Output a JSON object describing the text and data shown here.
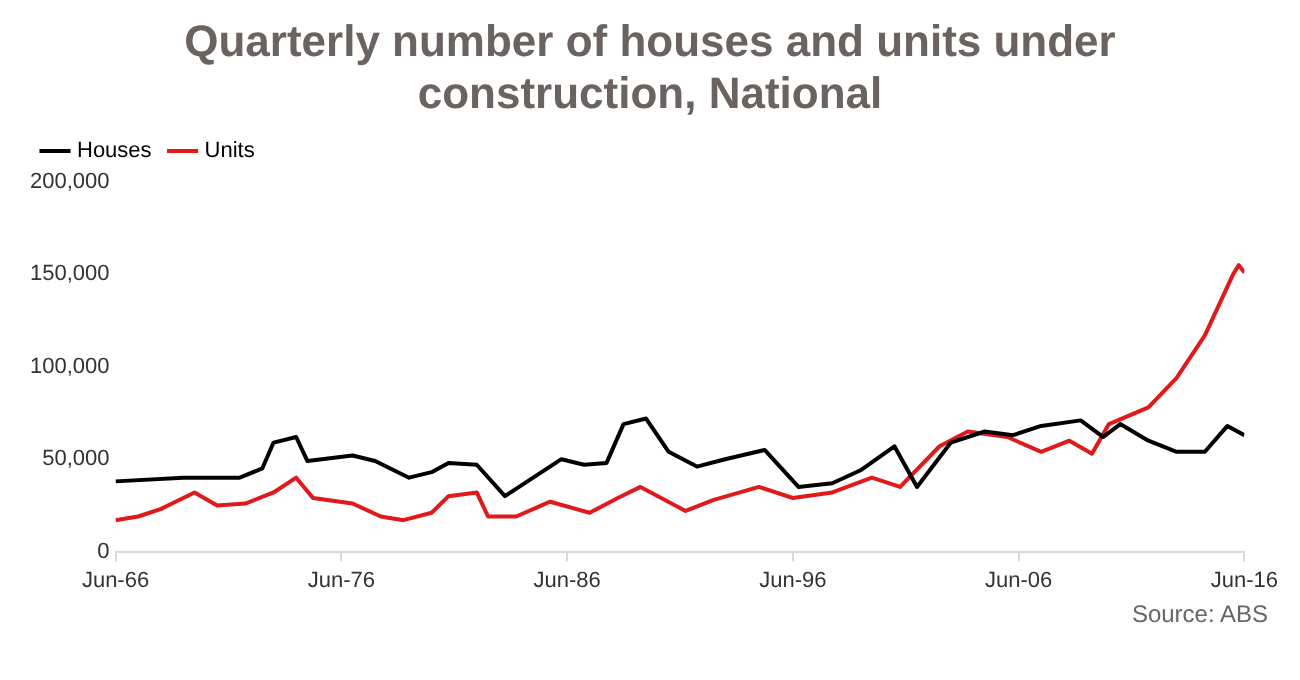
{
  "chart_data": {
    "type": "line",
    "title": "Quarterly number of houses and units under construction, National",
    "annotations": [
      "Source: ABS"
    ],
    "xlim": [
      "1966-06",
      "2016-06"
    ],
    "xticks": [
      {
        "value": "1966-06",
        "label": "Jun-66"
      },
      {
        "value": "1976-06",
        "label": "Jun-76"
      },
      {
        "value": "1986-06",
        "label": "Jun-86"
      },
      {
        "value": "1996-06",
        "label": "Jun-96"
      },
      {
        "value": "2006-06",
        "label": "Jun-06"
      },
      {
        "value": "2016-06",
        "label": "Jun-16"
      }
    ],
    "ylim": [
      0,
      200000
    ],
    "yticks": [
      {
        "value": 0,
        "label": "0"
      },
      {
        "value": 50000,
        "label": "50,000"
      },
      {
        "value": 100000,
        "label": "100,000"
      },
      {
        "value": 150000,
        "label": "150,000"
      },
      {
        "value": 200000,
        "label": "200,000"
      }
    ],
    "grid": false,
    "legend": "top left",
    "marker": "none",
    "line_style": "solid",
    "series": [
      {
        "name": "Houses",
        "color": "#000000",
        "x": [
          "1966-06",
          "1969-06",
          "1971-12",
          "1972-12",
          "1973-06",
          "1974-06",
          "1974-12",
          "1976-12",
          "1977-12",
          "1979-06",
          "1980-06",
          "1981-03",
          "1982-06",
          "1983-09",
          "1984-12",
          "1986-03",
          "1987-03",
          "1988-03",
          "1988-12",
          "1989-12",
          "1990-12",
          "1992-03",
          "1993-06",
          "1995-03",
          "1996-09",
          "1998-03",
          "1999-06",
          "2000-12",
          "2001-12",
          "2003-06",
          "2004-12",
          "2006-03",
          "2007-06",
          "2009-03",
          "2010-03",
          "2010-12",
          "2012-03",
          "2013-06",
          "2014-09",
          "2015-09",
          "2016-06"
        ],
        "values": [
          38000,
          40000,
          40000,
          45000,
          59000,
          62000,
          49000,
          52000,
          49000,
          40000,
          43000,
          48000,
          47000,
          30000,
          40000,
          50000,
          47000,
          48000,
          69000,
          72000,
          54000,
          46000,
          50000,
          55000,
          35000,
          37000,
          44000,
          57000,
          35000,
          59000,
          65000,
          63000,
          68000,
          71000,
          62000,
          69000,
          60000,
          54000,
          54000,
          68000,
          63000
        ]
      },
      {
        "name": "Units",
        "color": "#e0191b",
        "x": [
          "1966-06",
          "1967-06",
          "1968-06",
          "1969-12",
          "1970-12",
          "1972-03",
          "1973-06",
          "1974-06",
          "1975-03",
          "1976-12",
          "1978-03",
          "1979-03",
          "1980-06",
          "1981-03",
          "1982-06",
          "1982-12",
          "1984-03",
          "1985-09",
          "1987-06",
          "1988-09",
          "1989-09",
          "1991-09",
          "1992-12",
          "1994-12",
          "1996-06",
          "1998-03",
          "1999-12",
          "2001-03",
          "2002-12",
          "2004-03",
          "2005-12",
          "2007-06",
          "2008-09",
          "2009-09",
          "2010-06",
          "2012-03",
          "2013-06",
          "2014-09",
          "2015-12",
          "2016-03",
          "2016-06"
        ],
        "values": [
          17000,
          19000,
          23000,
          32000,
          25000,
          26000,
          32000,
          40000,
          29000,
          26000,
          19000,
          17000,
          21000,
          30000,
          32000,
          19000,
          19000,
          27000,
          21000,
          29000,
          35000,
          22000,
          28000,
          35000,
          29000,
          32000,
          40000,
          35000,
          57000,
          65000,
          62000,
          54000,
          60000,
          53000,
          69000,
          78000,
          94000,
          117000,
          150000,
          155000,
          151000
        ]
      }
    ]
  }
}
